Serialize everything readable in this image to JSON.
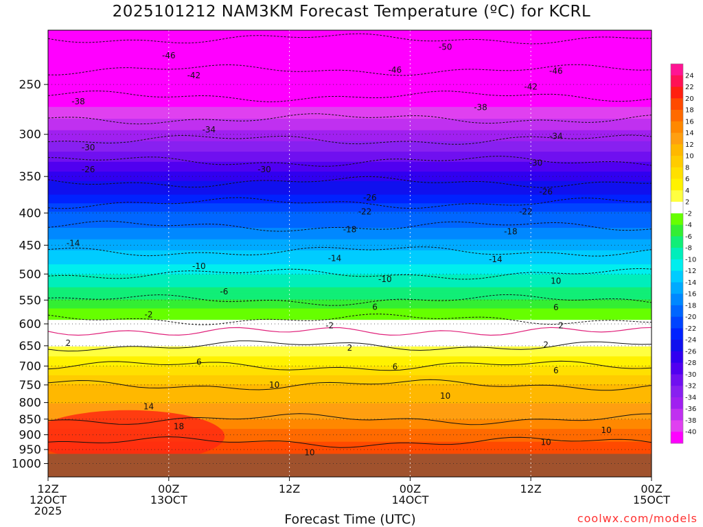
{
  "chart_data": {
    "type": "heatmap",
    "title": "2025101212 NAM3KM Forecast Temperature (ºC) for KCRL",
    "xlabel": "Forecast Time (UTC)",
    "ylabel": "",
    "credit": "coolwx.com/models",
    "x_ticks": [
      {
        "line1": "12Z",
        "line2": "12OCT",
        "line3": "2025",
        "hour": 0
      },
      {
        "line1": "00Z",
        "line2": "13OCT",
        "line3": "",
        "hour": 12
      },
      {
        "line1": "12Z",
        "line2": "",
        "line3": "",
        "hour": 24
      },
      {
        "line1": "00Z",
        "line2": "14OCT",
        "line3": "",
        "hour": 36
      },
      {
        "line1": "12Z",
        "line2": "",
        "line3": "",
        "hour": 48
      },
      {
        "line1": "00Z",
        "line2": "15OCT",
        "line3": "",
        "hour": 60
      }
    ],
    "xlim": [
      0,
      60
    ],
    "ylim": [
      1050,
      205
    ],
    "pressure_levels": [
      {
        "label": "250",
        "p": 250
      },
      {
        "label": "300",
        "p": 300
      },
      {
        "label": "350",
        "p": 350
      },
      {
        "label": "400",
        "p": 400
      },
      {
        "label": "450",
        "p": 450
      },
      {
        "label": "500",
        "p": 500
      },
      {
        "label": "550",
        "p": 550
      },
      {
        "label": "600",
        "p": 600
      },
      {
        "label": "650",
        "p": 650
      },
      {
        "label": "700",
        "p": 700
      },
      {
        "label": "750",
        "p": 750
      },
      {
        "label": "800",
        "p": 800
      },
      {
        "label": "850",
        "p": 850
      },
      {
        "label": "900",
        "p": 900
      },
      {
        "label": "950",
        "p": 950
      },
      {
        "label": "1000",
        "p": 1000
      }
    ],
    "temperature_profile": [
      {
        "p": 205,
        "t": -51
      },
      {
        "p": 250,
        "t": -44
      },
      {
        "p": 300,
        "t": -35
      },
      {
        "p": 350,
        "t": -27
      },
      {
        "p": 400,
        "t": -20
      },
      {
        "p": 450,
        "t": -15
      },
      {
        "p": 500,
        "t": -10
      },
      {
        "p": 550,
        "t": -6
      },
      {
        "p": 600,
        "t": -1
      },
      {
        "p": 650,
        "t": 2
      },
      {
        "p": 700,
        "t": 6
      },
      {
        "p": 750,
        "t": 10
      },
      {
        "p": 800,
        "t": 12
      },
      {
        "p": 850,
        "t": 14
      },
      {
        "p": 900,
        "t": 17
      },
      {
        "p": 950,
        "t": 19
      }
    ],
    "surface_pressure_ground": 965,
    "contour_labels": [
      {
        "text": "-50",
        "hour": 39.5,
        "p": 218
      },
      {
        "text": "-46",
        "hour": 12.0,
        "p": 225
      },
      {
        "text": "-46",
        "hour": 34.5,
        "p": 237
      },
      {
        "text": "-46",
        "hour": 50.5,
        "p": 238
      },
      {
        "text": "-42",
        "hour": 14.5,
        "p": 242
      },
      {
        "text": "-42",
        "hour": 48.0,
        "p": 252
      },
      {
        "text": "-38",
        "hour": 3.0,
        "p": 266
      },
      {
        "text": "-38",
        "hour": 43.0,
        "p": 272
      },
      {
        "text": "-34",
        "hour": 16.0,
        "p": 295
      },
      {
        "text": "-34",
        "hour": 50.5,
        "p": 302
      },
      {
        "text": "-30",
        "hour": 4.0,
        "p": 315
      },
      {
        "text": "-30",
        "hour": 21.5,
        "p": 341
      },
      {
        "text": "-30",
        "hour": 48.5,
        "p": 333
      },
      {
        "text": "-26",
        "hour": 4.0,
        "p": 341
      },
      {
        "text": "-26",
        "hour": 32.0,
        "p": 378
      },
      {
        "text": "-26",
        "hour": 49.5,
        "p": 370
      },
      {
        "text": "-22",
        "hour": 31.5,
        "p": 398
      },
      {
        "text": "-22",
        "hour": 47.5,
        "p": 398
      },
      {
        "text": "-18",
        "hour": 30.0,
        "p": 425
      },
      {
        "text": "-18",
        "hour": 46.0,
        "p": 428
      },
      {
        "text": "-14",
        "hour": 2.5,
        "p": 447
      },
      {
        "text": "-14",
        "hour": 28.5,
        "p": 472
      },
      {
        "text": "-14",
        "hour": 44.5,
        "p": 474
      },
      {
        "text": "-10",
        "hour": 15.0,
        "p": 486
      },
      {
        "text": "-10",
        "hour": 33.5,
        "p": 510
      },
      {
        "text": "10",
        "hour": 50.5,
        "p": 513
      },
      {
        "text": "-6",
        "hour": 17.5,
        "p": 533
      },
      {
        "text": "6",
        "hour": 32.5,
        "p": 564
      },
      {
        "text": "6",
        "hour": 50.5,
        "p": 565
      },
      {
        "text": "-2",
        "hour": 10.0,
        "p": 580
      },
      {
        "text": "-2",
        "hour": 28.0,
        "p": 604
      },
      {
        "text": "2",
        "hour": 51.0,
        "p": 604
      },
      {
        "text": "2",
        "hour": 2.0,
        "p": 644
      },
      {
        "text": "2",
        "hour": 30.0,
        "p": 655
      },
      {
        "text": "2",
        "hour": 49.5,
        "p": 648
      },
      {
        "text": "6",
        "hour": 15.0,
        "p": 690
      },
      {
        "text": "6",
        "hour": 34.5,
        "p": 702
      },
      {
        "text": "6",
        "hour": 50.5,
        "p": 712
      },
      {
        "text": "10",
        "hour": 22.5,
        "p": 750
      },
      {
        "text": "10",
        "hour": 39.5,
        "p": 781
      },
      {
        "text": "14",
        "hour": 10.0,
        "p": 812
      },
      {
        "text": "18",
        "hour": 13.0,
        "p": 873
      },
      {
        "text": "10",
        "hour": 55.5,
        "p": 885
      },
      {
        "text": "10",
        "hour": 49.5,
        "p": 925
      },
      {
        "text": "10",
        "hour": 26.0,
        "p": 960
      }
    ],
    "colorbar": {
      "labels": [
        "24",
        "22",
        "20",
        "18",
        "16",
        "14",
        "12",
        "10",
        "8",
        "6",
        "4",
        "2",
        "-2",
        "-4",
        "-6",
        "-8",
        "-10",
        "-12",
        "-14",
        "-16",
        "-18",
        "-20",
        "-22",
        "-24",
        "-26",
        "-28",
        "-30",
        "-32",
        "-34",
        "-36",
        "-38",
        "-40"
      ],
      "colors": [
        "#ff1493",
        "#ff1155",
        "#ff2010",
        "#ff4a00",
        "#ff6a00",
        "#ff8800",
        "#ff9f10",
        "#ffb800",
        "#ffcc00",
        "#ffe000",
        "#fff200",
        "#ffff40",
        "#ffffff",
        "#66ff00",
        "#33ee33",
        "#11ee77",
        "#00eebb",
        "#00eeee",
        "#00ccff",
        "#00aaff",
        "#0088ff",
        "#0066ff",
        "#0044ff",
        "#0022ff",
        "#1010ee",
        "#3000f0",
        "#5000f0",
        "#7010f0",
        "#8820f0",
        "#a020f0",
        "#c030f0",
        "#e040f0",
        "#ff00ff"
      ]
    },
    "ground_color": "#a0522d",
    "freezing_line_color": "#e0207a"
  }
}
